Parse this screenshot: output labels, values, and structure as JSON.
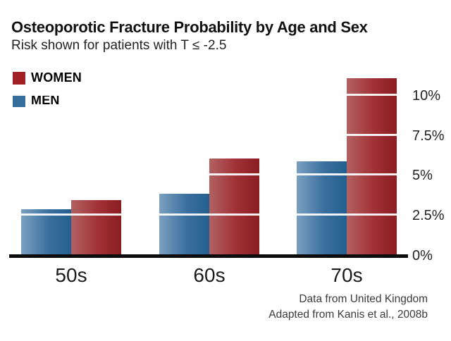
{
  "header": {
    "title": "Osteoporotic Fracture Probability by Age and Sex",
    "subtitle": "Risk shown for patients with T ≤ -2.5"
  },
  "legend": [
    {
      "label": "WOMEN",
      "color": "#a02025"
    },
    {
      "label": "MEN",
      "color": "#336e9d"
    }
  ],
  "chart_data": {
    "type": "bar",
    "title": "Osteoporotic Fracture Probability by Age and Sex",
    "subtitle": "Risk shown for patients with T ≤ -2.5",
    "categories": [
      "50s",
      "60s",
      "70s"
    ],
    "series": [
      {
        "name": "MEN",
        "values": [
          2.8,
          3.8,
          5.8
        ],
        "gradient": [
          "#7ba0c0",
          "#3a6f9f",
          "#24608f"
        ]
      },
      {
        "name": "WOMEN",
        "values": [
          3.4,
          6.0,
          11.0
        ],
        "gradient": [
          "#b16163",
          "#a03035",
          "#8a1d22"
        ]
      }
    ],
    "xlabel": "",
    "ylabel": "",
    "yticks": [
      0,
      2.5,
      5,
      7.5,
      10
    ],
    "ytick_labels": [
      "0%",
      "2.5%",
      "5%",
      "7.5%",
      "10%"
    ],
    "ylim": [
      0,
      11.5
    ],
    "ytick_side": "right",
    "grid": "horizontal-white-lines-over-bars",
    "legend_position": "top-left",
    "axis_color": "#0c0c0c"
  },
  "footer": {
    "line1": "Data from United Kingdom",
    "line2": "Adapted from Kanis et al., 2008b"
  }
}
